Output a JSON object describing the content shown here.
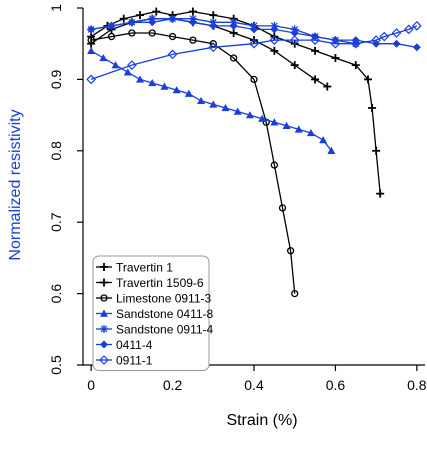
{
  "chart_data": {
    "type": "line",
    "title": "",
    "xlabel": "Strain (%)",
    "ylabel": "Normalized resistivity",
    "xlim": [
      -0.02,
      0.82
    ],
    "ylim": [
      0.5,
      1.0
    ],
    "xticks": [
      0,
      0.2,
      0.4,
      0.6,
      0.8
    ],
    "yticks": [
      0.5,
      0.6,
      0.7,
      0.8,
      0.9,
      1
    ],
    "grid": false,
    "legend_position": "lower-left",
    "series": [
      {
        "name": "Travertin 1",
        "color": "#000000",
        "marker": "plus",
        "x": [
          0,
          0.04,
          0.08,
          0.12,
          0.16,
          0.2,
          0.25,
          0.3,
          0.35,
          0.4,
          0.45,
          0.5,
          0.55,
          0.6,
          0.65,
          0.68,
          0.69,
          0.7,
          0.71
        ],
        "y": [
          0.96,
          0.975,
          0.985,
          0.99,
          0.995,
          0.99,
          0.995,
          0.99,
          0.985,
          0.975,
          0.96,
          0.95,
          0.94,
          0.93,
          0.92,
          0.9,
          0.86,
          0.8,
          0.74
        ]
      },
      {
        "name": "Travertin 1509-6",
        "color": "#000000",
        "marker": "plus",
        "x": [
          0,
          0.05,
          0.1,
          0.15,
          0.2,
          0.25,
          0.3,
          0.35,
          0.4,
          0.45,
          0.5,
          0.55,
          0.58
        ],
        "y": [
          0.95,
          0.97,
          0.98,
          0.985,
          0.985,
          0.98,
          0.975,
          0.965,
          0.955,
          0.94,
          0.92,
          0.9,
          0.89
        ]
      },
      {
        "name": "Limestone 0911-3",
        "color": "#000000",
        "marker": "circle",
        "x": [
          0,
          0.05,
          0.1,
          0.15,
          0.2,
          0.25,
          0.3,
          0.35,
          0.4,
          0.43,
          0.45,
          0.47,
          0.49,
          0.5
        ],
        "y": [
          0.955,
          0.96,
          0.965,
          0.965,
          0.96,
          0.955,
          0.95,
          0.93,
          0.9,
          0.84,
          0.78,
          0.72,
          0.66,
          0.6
        ]
      },
      {
        "name": "Sandstone 0411-8",
        "color": "#1a3fd8",
        "marker": "triangle",
        "x": [
          0,
          0.03,
          0.06,
          0.09,
          0.12,
          0.15,
          0.18,
          0.21,
          0.24,
          0.27,
          0.3,
          0.33,
          0.36,
          0.39,
          0.42,
          0.45,
          0.48,
          0.51,
          0.54,
          0.57,
          0.59
        ],
        "y": [
          0.94,
          0.93,
          0.92,
          0.91,
          0.9,
          0.895,
          0.89,
          0.885,
          0.88,
          0.87,
          0.865,
          0.86,
          0.855,
          0.85,
          0.845,
          0.84,
          0.835,
          0.83,
          0.825,
          0.815,
          0.8
        ]
      },
      {
        "name": "Sandstone 0911-4",
        "color": "#1a3fd8",
        "marker": "star",
        "x": [
          0,
          0.05,
          0.1,
          0.15,
          0.2,
          0.25,
          0.3,
          0.35,
          0.4,
          0.45,
          0.5,
          0.55,
          0.6,
          0.65
        ],
        "y": [
          0.97,
          0.975,
          0.98,
          0.985,
          0.985,
          0.985,
          0.98,
          0.98,
          0.975,
          0.975,
          0.97,
          0.96,
          0.955,
          0.95
        ]
      },
      {
        "name": "0411-4",
        "color": "#1a3fd8",
        "marker": "diamond",
        "x": [
          0,
          0.05,
          0.1,
          0.15,
          0.2,
          0.25,
          0.3,
          0.35,
          0.4,
          0.45,
          0.5,
          0.55,
          0.6,
          0.65,
          0.7,
          0.75,
          0.8
        ],
        "y": [
          0.97,
          0.975,
          0.98,
          0.98,
          0.985,
          0.98,
          0.975,
          0.975,
          0.97,
          0.97,
          0.965,
          0.96,
          0.955,
          0.955,
          0.95,
          0.95,
          0.945
        ]
      },
      {
        "name": "0911-1",
        "color": "#1a3fd8",
        "marker": "open-diamond",
        "x": [
          0,
          0.1,
          0.2,
          0.3,
          0.4,
          0.45,
          0.5,
          0.55,
          0.6,
          0.65,
          0.7,
          0.72,
          0.75,
          0.78,
          0.8
        ],
        "y": [
          0.9,
          0.92,
          0.935,
          0.945,
          0.95,
          0.955,
          0.955,
          0.955,
          0.95,
          0.95,
          0.955,
          0.96,
          0.965,
          0.97,
          0.975
        ]
      }
    ]
  }
}
